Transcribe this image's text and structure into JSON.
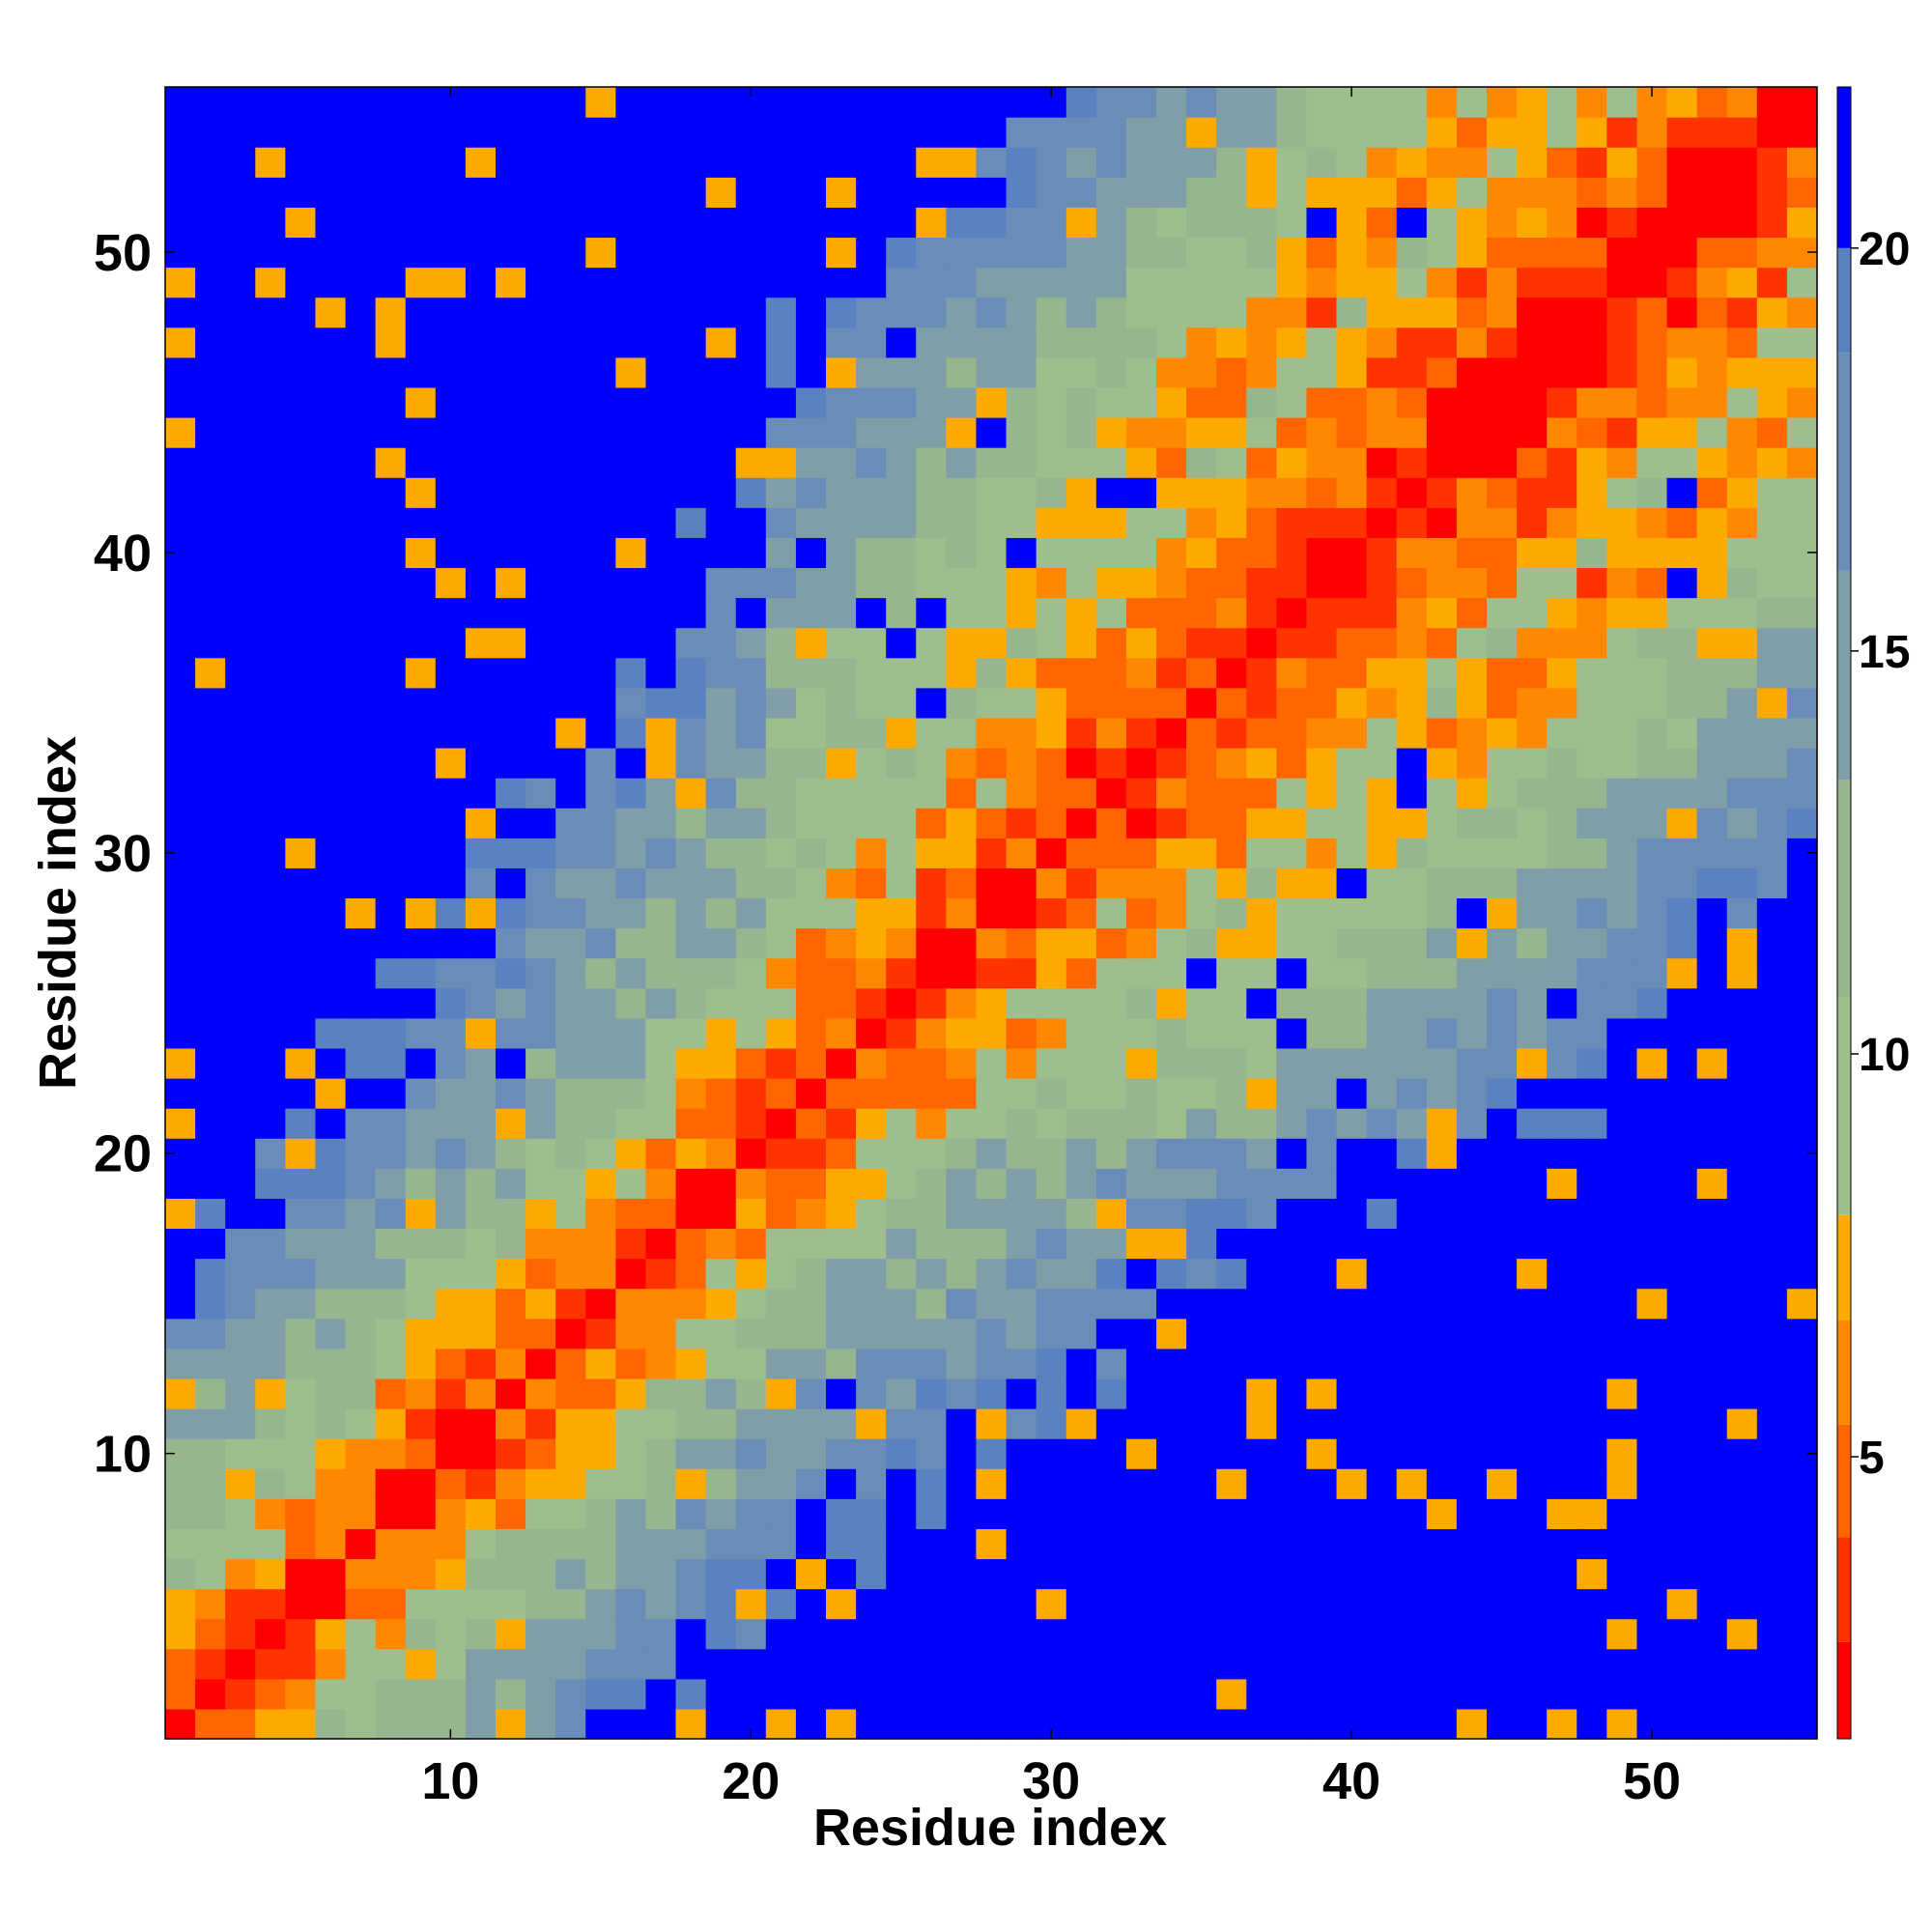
{
  "chart_data": {
    "type": "heatmap",
    "xlabel": "Residue index",
    "ylabel": "Residue index",
    "n": 55,
    "x_ticks": [
      "10",
      "20",
      "30",
      "40",
      "50"
    ],
    "y_ticks": [
      "10",
      "20",
      "30",
      "40",
      "50"
    ],
    "colorbar_ticks": [
      "5",
      "10",
      "15",
      "20"
    ],
    "colorbar_range": [
      1.5,
      22
    ],
    "colormap": [
      {
        "max": 2.7,
        "color": "#ff0000"
      },
      {
        "max": 4.0,
        "color": "#ff3300"
      },
      {
        "max": 5.4,
        "color": "#ff6600"
      },
      {
        "max": 6.7,
        "color": "#ff8800"
      },
      {
        "max": 8.0,
        "color": "#ffaa00"
      },
      {
        "max": 10.7,
        "color": "#9fbe8e"
      },
      {
        "max": 13.4,
        "color": "#97b690"
      },
      {
        "max": 16.0,
        "color": "#7f9ea8"
      },
      {
        "max": 18.7,
        "color": "#6a8cb8"
      },
      {
        "max": 20.0,
        "color": "#5a82c0"
      },
      {
        "max": 99.0,
        "color": "#0000ff"
      }
    ],
    "grid": false,
    "description_of_values": "Symmetric pairwise residue distance map; values grow with |i-j|, diagonal near zero, far-off-diagonal above 20."
  }
}
